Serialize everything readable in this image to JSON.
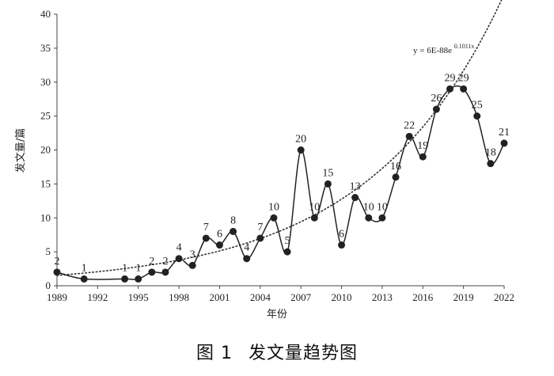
{
  "chart_data": {
    "type": "line",
    "title": "",
    "xlabel": "年份",
    "ylabel": "发文量/篇",
    "xlim": [
      1989,
      2022
    ],
    "ylim": [
      0,
      40
    ],
    "x_ticks": [
      1989,
      1992,
      1995,
      1998,
      2001,
      2004,
      2007,
      2010,
      2013,
      2016,
      2019,
      2022
    ],
    "y_ticks": [
      0,
      5,
      10,
      15,
      20,
      25,
      30,
      35,
      40
    ],
    "grid": false,
    "series": [
      {
        "x": [
          1989,
          1991,
          1994,
          1995,
          1996,
          1997,
          1998,
          1999,
          2000,
          2001,
          2002,
          2003,
          2004,
          2005,
          2006,
          2007,
          2008,
          2009,
          2010,
          2011,
          2012,
          2013,
          2014,
          2015,
          2016,
          2017,
          2018,
          2019,
          2020,
          2021,
          2022
        ],
        "values": [
          2,
          1,
          1,
          1,
          2,
          2,
          4,
          3,
          7,
          6,
          8,
          4,
          7,
          10,
          5,
          20,
          10,
          15,
          6,
          13,
          10,
          10,
          16,
          22,
          19,
          26,
          29,
          29,
          25,
          18,
          21
        ],
        "color": "#222222"
      }
    ],
    "trendline": {
      "type": "exponential",
      "equation_main": "y = 6E-88e",
      "equation_exp": "0.1011x",
      "a": 6e-88,
      "b": 0.1011
    }
  },
  "figure": {
    "caption_number": "图 1",
    "caption_text": "发文量趋势图"
  }
}
